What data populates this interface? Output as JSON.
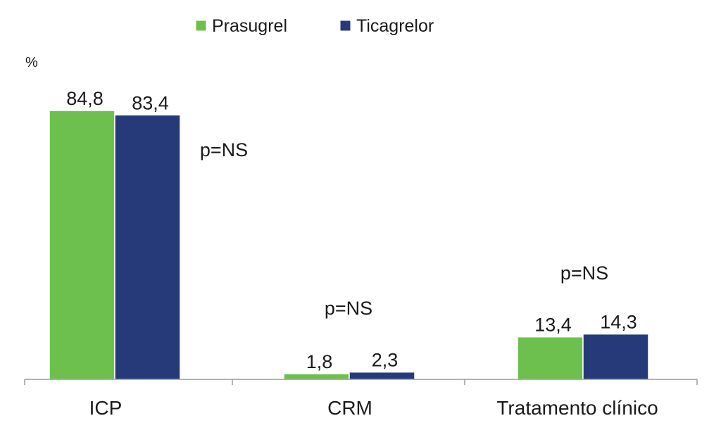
{
  "chart_data": {
    "type": "bar",
    "ylabel": "%",
    "ylim": [
      0,
      100
    ],
    "categories": [
      "ICP",
      "CRM",
      "Tratamento clínico"
    ],
    "series": [
      {
        "name": "Prasugrel",
        "color": "#6ec04e",
        "values": [
          84.8,
          1.8,
          13.4
        ],
        "value_labels": [
          "84,8",
          "1,8",
          "13,4"
        ]
      },
      {
        "name": "Ticagrelor",
        "color": "#263a7a",
        "values": [
          83.4,
          2.3,
          14.3
        ],
        "value_labels": [
          "83,4",
          "2,3",
          "14,3"
        ]
      }
    ],
    "annotations": [
      "p=NS",
      "p=NS",
      "p=NS"
    ],
    "legend_position": "top",
    "grid": false
  }
}
